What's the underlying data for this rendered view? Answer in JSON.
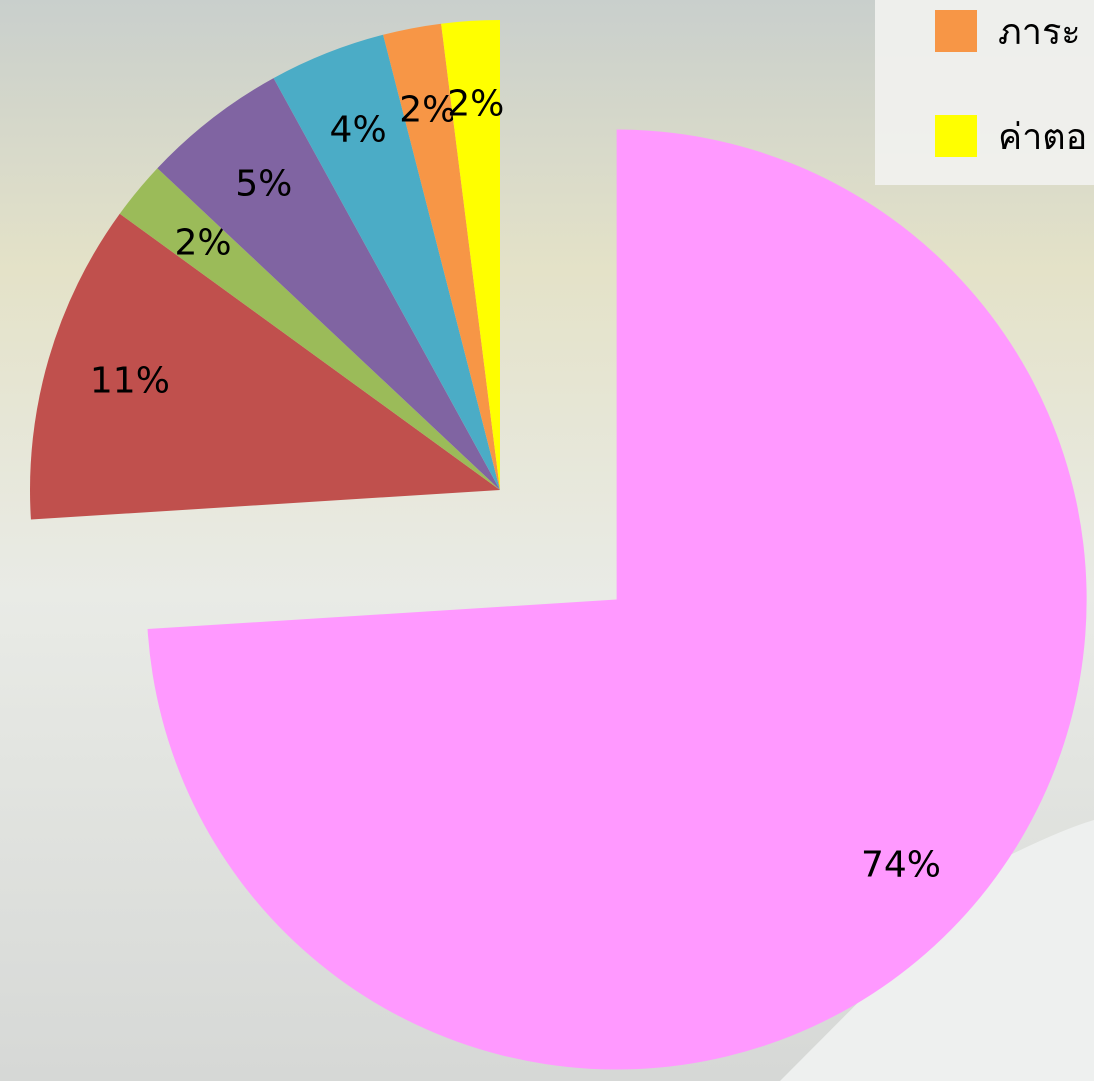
{
  "chart_data": {
    "type": "pie",
    "categories": [
      null,
      null,
      null,
      null,
      null,
      "ภาระ",
      "ค่าตอ"
    ],
    "values": [
      74,
      11,
      2,
      5,
      4,
      2,
      2
    ],
    "value_labels": [
      "74%",
      "11%",
      "2%",
      "5%",
      "4%",
      "2%",
      "2%"
    ],
    "colors": [
      "#ff99ff",
      "#c0504d",
      "#9bbb59",
      "#8064a2",
      "#4bacc6",
      "#f79646",
      "#ffff00"
    ]
  }
}
